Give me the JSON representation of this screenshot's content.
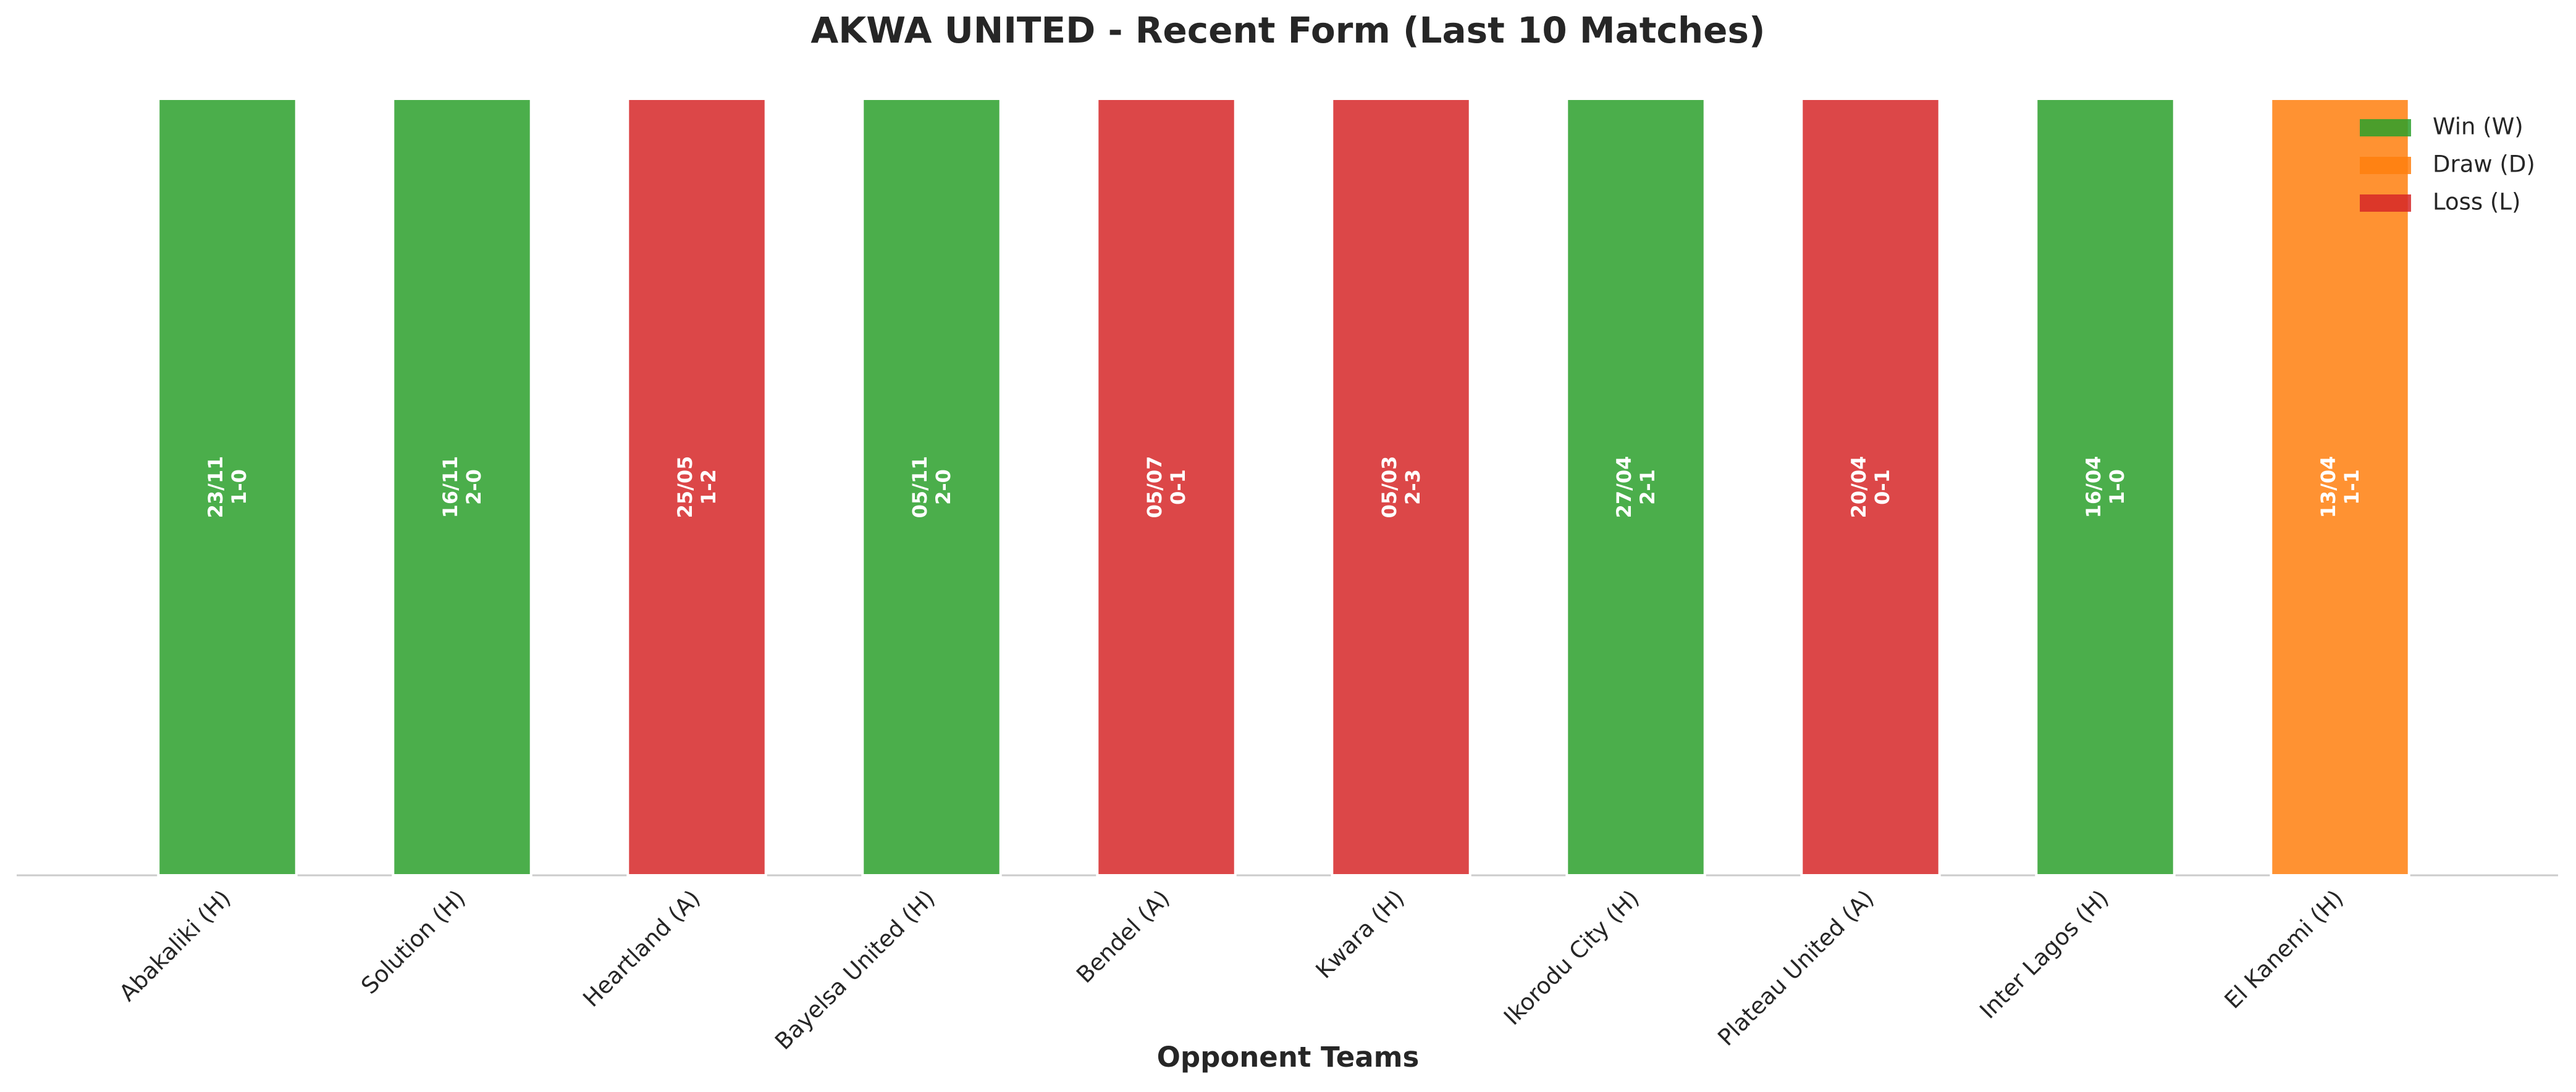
{
  "chart_data": {
    "type": "bar",
    "title": "AKWA UNITED - Recent Form (Last 10 Matches)",
    "x_label": "Opponent Teams",
    "categories": [
      "Abakaliki (H)",
      "Solution (H)",
      "Heartland (A)",
      "Bayelsa United (H)",
      "Bendel (A)",
      "Kwara (H)",
      "Ikorodu City (H)",
      "Plateau United (A)",
      "Inter Lagos (H)",
      "El Kanemi (H)"
    ],
    "dates": [
      "23/11",
      "16/11",
      "25/05",
      "05/11",
      "05/07",
      "05/03",
      "27/04",
      "20/04",
      "16/04",
      "13/04"
    ],
    "scores": [
      "1-0",
      "2-0",
      "1-2",
      "2-0",
      "0-1",
      "2-3",
      "2-1",
      "0-1",
      "1-0",
      "1-1"
    ],
    "results": [
      "W",
      "W",
      "L",
      "W",
      "L",
      "L",
      "W",
      "L",
      "W",
      "D"
    ],
    "values": [
      1,
      1,
      1,
      1,
      1,
      1,
      1,
      1,
      1,
      1
    ],
    "ylim": [
      0,
      1
    ],
    "legend": [
      {
        "code": "W",
        "name": "Win (W)",
        "color": "#2ca02c"
      },
      {
        "code": "D",
        "name": "Draw (D)",
        "color": "#ff7f0e"
      },
      {
        "code": "L",
        "name": "Loss (L)",
        "color": "#d62728"
      }
    ],
    "legend_loc": "upper right"
  }
}
